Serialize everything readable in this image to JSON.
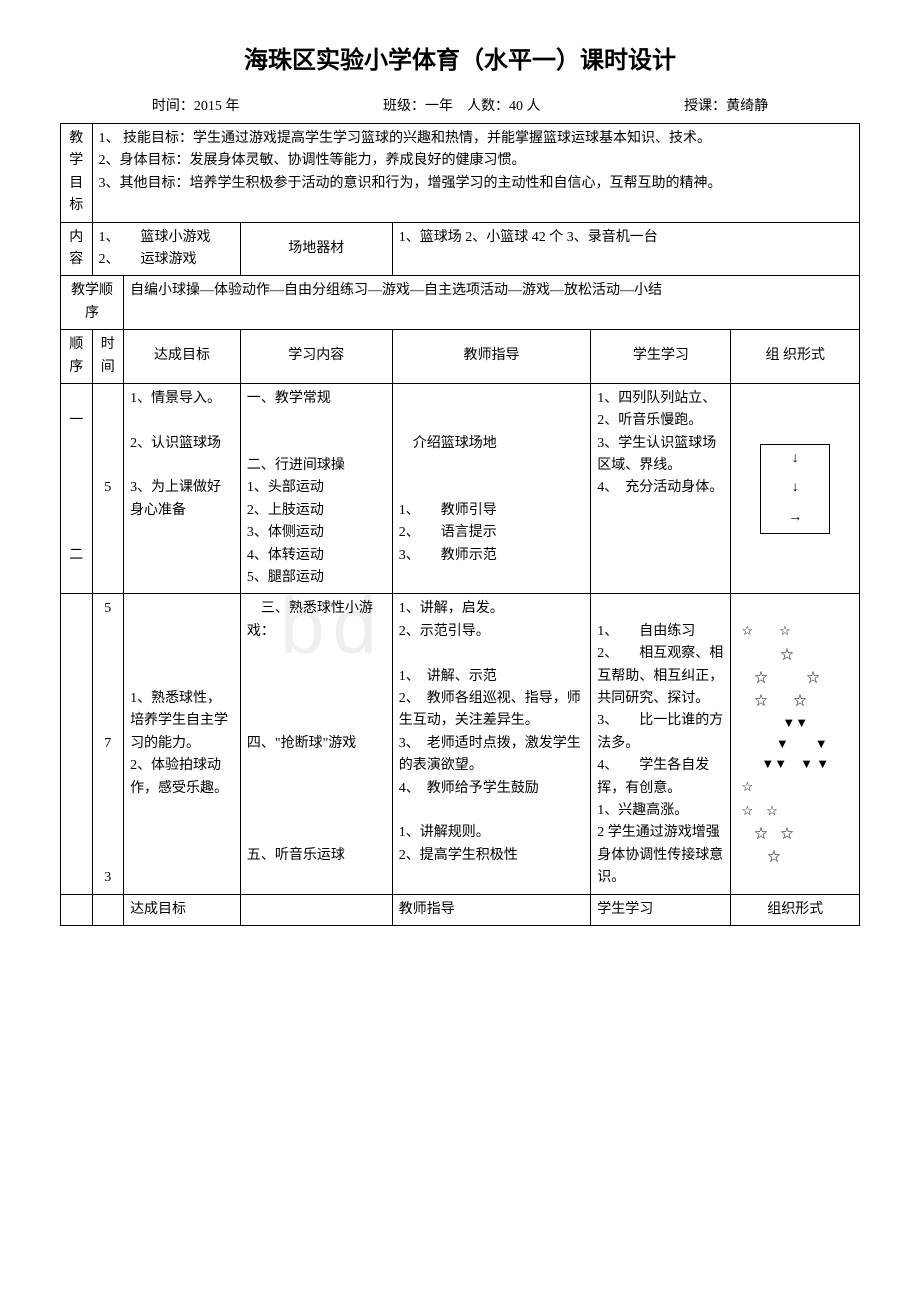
{
  "title": "海珠区实验小学体育（水平一）课时设计",
  "meta": {
    "time_label": "时间：",
    "time_value": "2015  年",
    "class_label": "班级：",
    "class_value": "一年",
    "count_label": "人数：",
    "count_value": "40 人",
    "teacher_label": "授课：",
    "teacher_value": "黄绮静"
  },
  "objectives_label": "教学目标",
  "objectives": "1、 技能目标：学生通过游戏提高学生学习篮球的兴趣和热情，并能掌握篮球运球基本知识、技术。\n2、身体目标：发展身体灵敏、协调性等能力，养成良好的健康习惯。\n3、其他目标：培养学生积极参于活动的意识和行为，增强学习的主动性和自信心，互帮互助的精神。",
  "content_label": "内容",
  "content_text": "1、　　篮球小游戏\n2、　　运球游戏",
  "venue_label": "场地器材",
  "venue_text": "1、篮球场 2、小篮球 42 个 3、录音机一台",
  "sequence_label": "教学顺序",
  "sequence_text": "自编小球操—体验动作—自由分组练习—游戏—自主选项活动—游戏—放松活动—小结",
  "headers": {
    "order": "顺序",
    "time": "时间",
    "goal": "达成目标",
    "study": "学习内容",
    "teacher": "教师指导",
    "student": "学生学习",
    "form": "组 织形式"
  },
  "rows": [
    {
      "order": "一\n\n\n\n\n\n二",
      "time": "5",
      "goal": "1、情景导入。\n\n2、认识篮球场\n\n3、为上课做好身心准备",
      "study": "一、教学常规\n\n\n二、行进间球操\n1、头部运动\n2、上肢运动\n3、体侧运动\n4、体转运动\n5、腿部运动",
      "teacher": "\n\n　介绍篮球场地\n\n\n1、　　教师引导\n2、　　语言提示\n3、　　教师示范",
      "student": "1、四列队列站立、\n2、听音乐慢跑。\n3、学生认识篮球场区域、界线。\n4、　充分活动身体。",
      "form_type": "arrows"
    },
    {
      "order": "",
      "time": "5\n\n\n\n\n\n7\n\n\n\n\n\n3",
      "goal": "\n\n\n\n1、熟悉球性，培养学生自主学习的能力。\n2、体验拍球动作，感受乐趣。",
      "study": "　三、熟悉球性小游戏：\n\n\n\n\n四、\"抢断球\"游戏\n\n\n\n\n五、听音乐运球",
      "teacher": "1、讲解，启发。\n2、示范引导。\n\n1、　讲解、示范\n2、　教师各组巡视、指导，师生互动，关注差异生。\n3、　老师适时点拨，激发学生的表演欲望。\n4、　教师给予学生鼓励\n\n1、讲解规则。\n2、提高学生积极性",
      "student": "\n1、　　自由练习\n2、　　相互观察、相互帮助、相互纠正，共同研究、探讨。\n3、　　比一比谁的方法多。\n4、　　学生各自发挥，有创意。\n1、兴趣高涨。\n2 学生通过游戏增强身体协调性传接球意识。",
      "form_type": "stars_triangles"
    }
  ],
  "footer": {
    "goal": "达成目标",
    "teacher": "教师指导",
    "student": "学生学习",
    "form": "组织形式"
  },
  "diagram_arrows": {
    "a1": "↓",
    "a2": "↓",
    "a3": "→"
  },
  "star_pattern": "☆　　☆\n　　　☆\n　☆　　　☆\n　☆　　☆",
  "triangle_pattern": "▼▼\n　▼　　▼\n▼▼　▼ ▼",
  "star_pattern2": "☆\n☆　☆\n　☆　☆\n　　☆"
}
